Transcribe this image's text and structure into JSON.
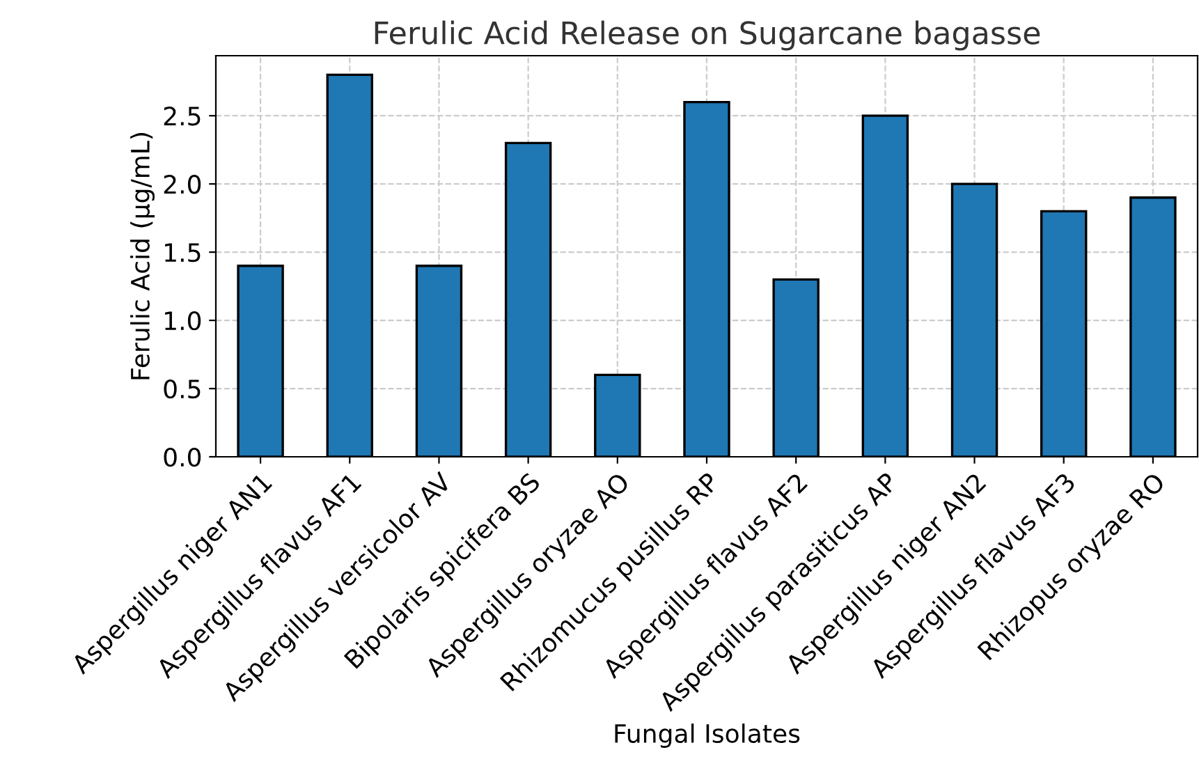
{
  "chart_data": {
    "type": "bar",
    "title": "Ferulic Acid Release on Sugarcane bagasse",
    "xlabel": "Fungal Isolates",
    "ylabel": "Ferulic Acid (µg/mL)",
    "categories": [
      "Aspergillus niger AN1",
      "Aspergillus flavus AF1",
      "Aspergillus versicolor AV",
      "Bipolaris spicifera BS",
      "Aspergillus oryzae AO",
      "Rhizomucus pusillus RP",
      "Aspergillus flavus AF2",
      "Aspergillus parasiticus AP",
      "Aspergillus niger AN2",
      "Aspergillus flavus AF3",
      "Rhizopus oryzae RO"
    ],
    "values": [
      1.4,
      2.8,
      1.4,
      2.3,
      0.6,
      2.6,
      1.3,
      2.5,
      2.0,
      1.8,
      1.9
    ],
    "color": "#1f77b4",
    "ylim": [
      0,
      2.94
    ],
    "yticks": [
      {
        "value": 0,
        "label": "0.0"
      },
      {
        "value": 0.5,
        "label": "0.5"
      },
      {
        "value": 1,
        "label": "1.0"
      },
      {
        "value": 1.5,
        "label": "1.5"
      },
      {
        "value": 2,
        "label": "2.0"
      },
      {
        "value": 2.5,
        "label": "2.5"
      }
    ],
    "grid": true,
    "line_style": "dashed"
  }
}
